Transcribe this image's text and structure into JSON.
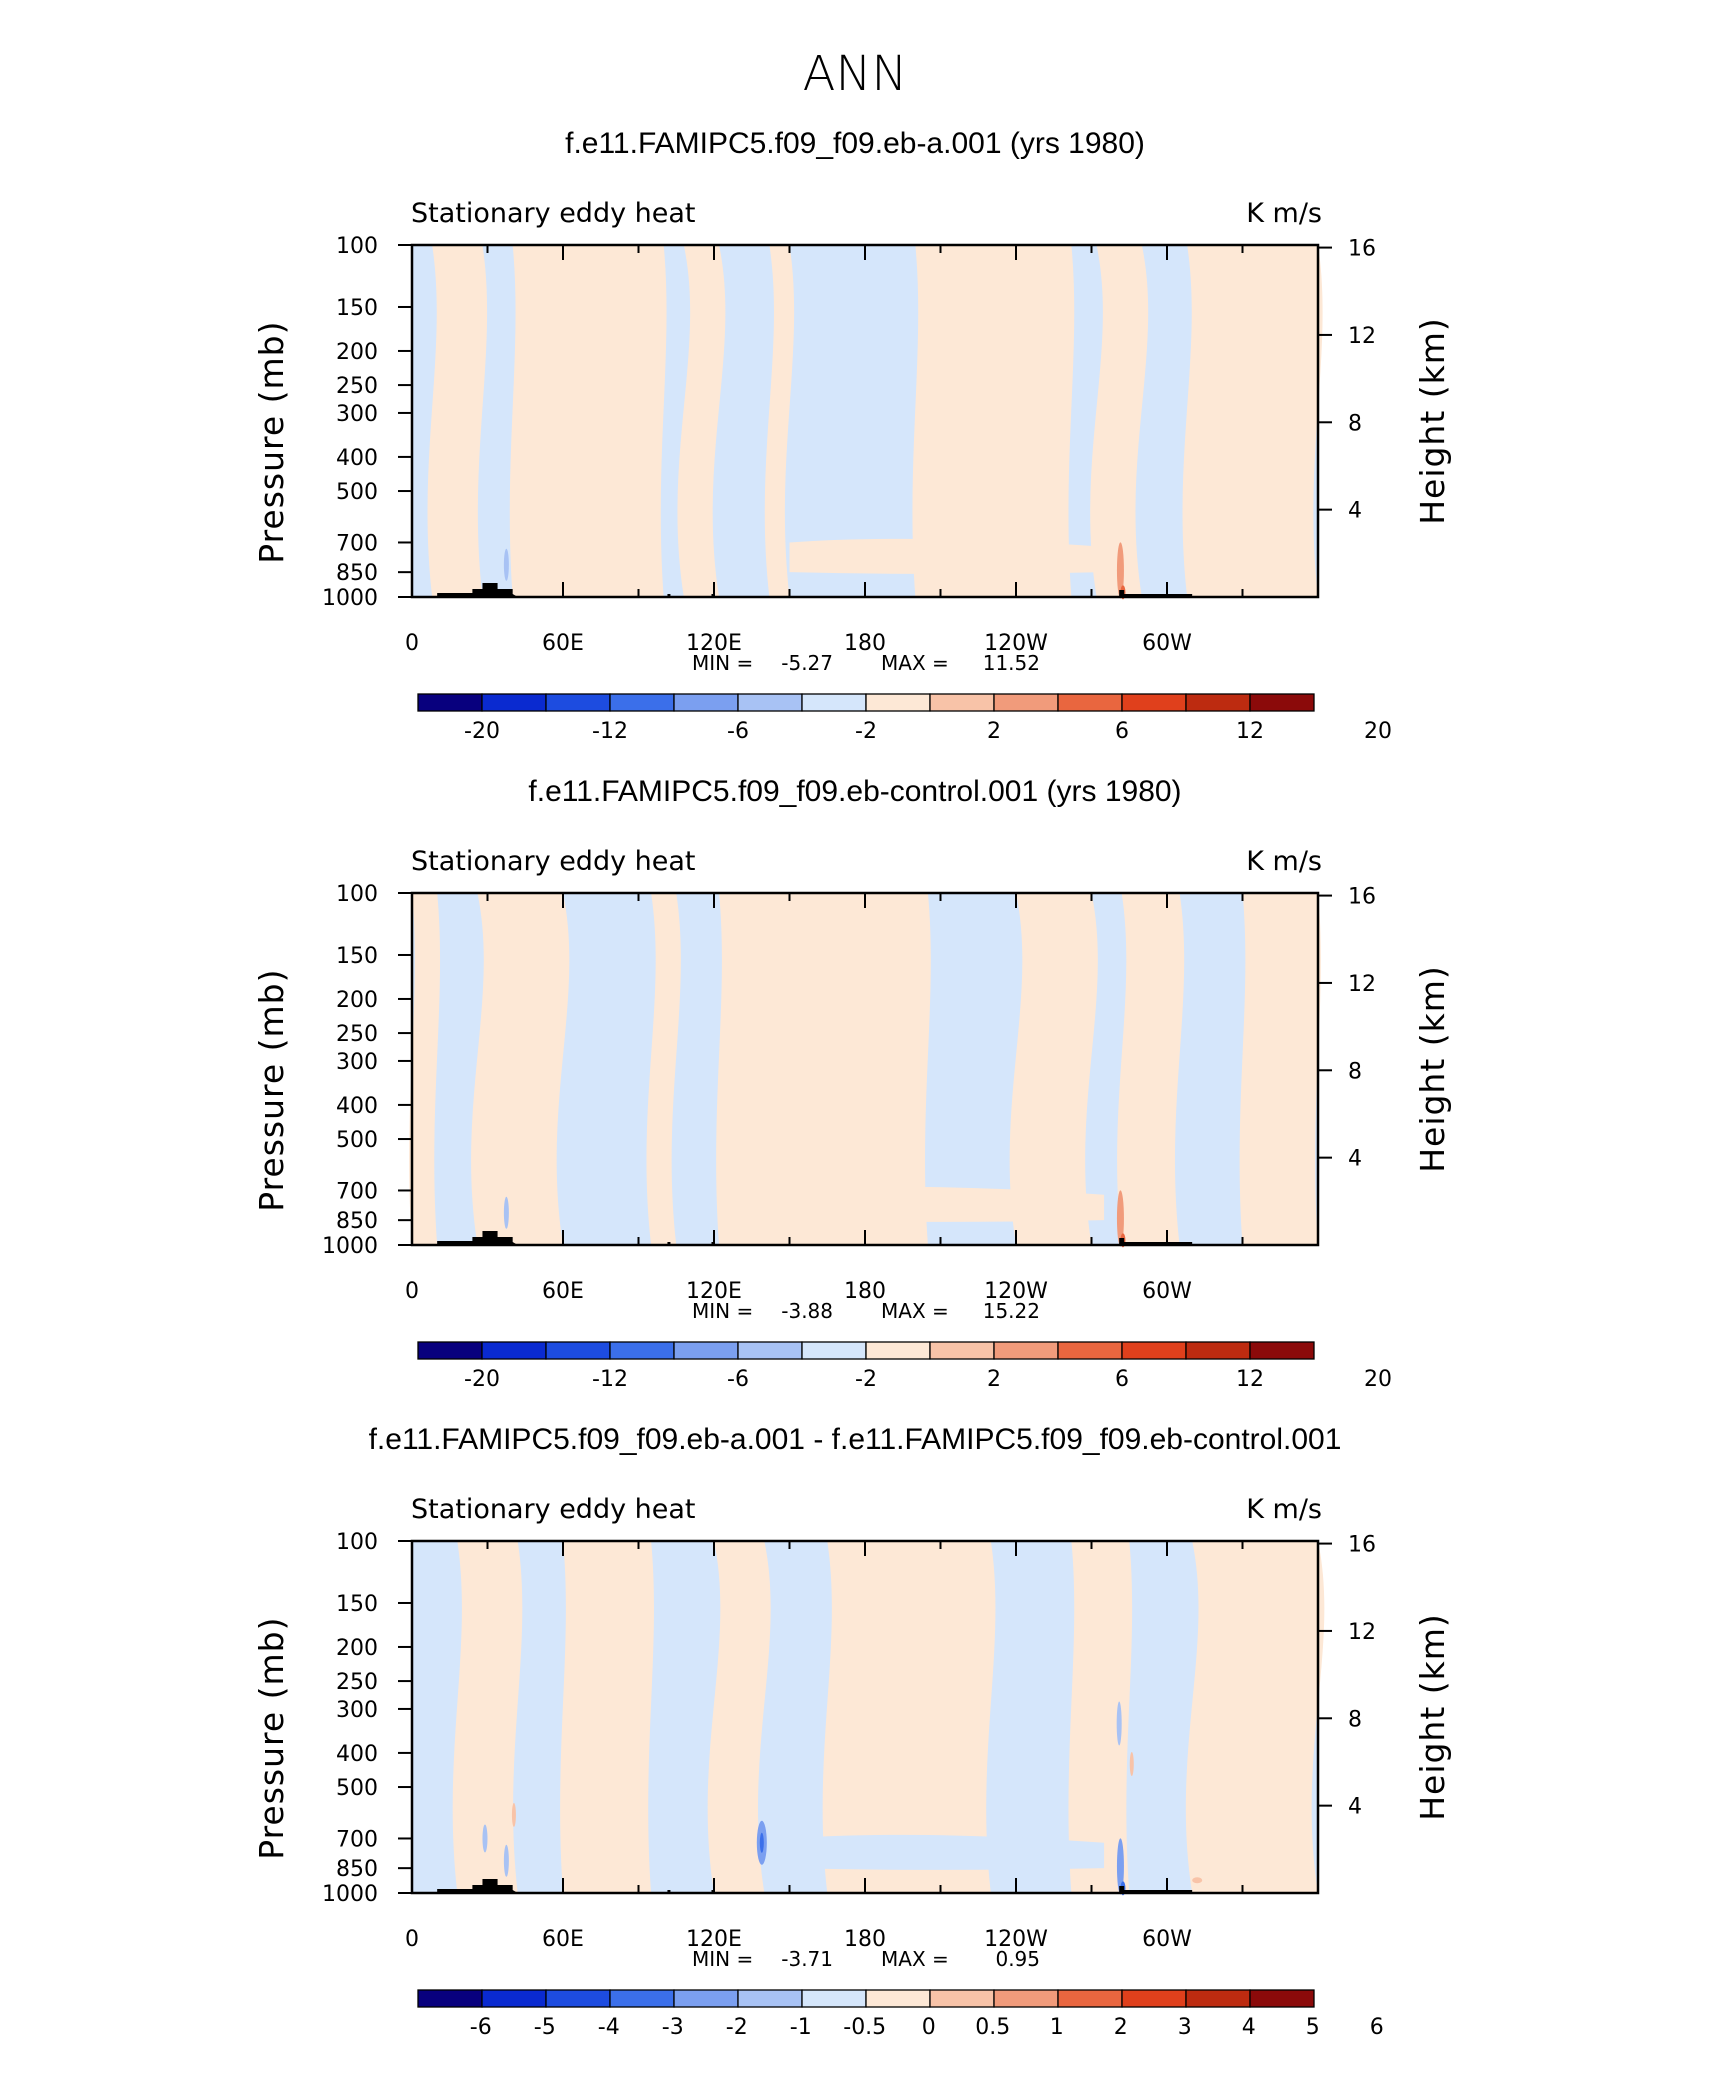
{
  "page_title": "ANN",
  "chart_data": [
    {
      "type": "heatmap",
      "title": "f.e11.FAMIPC5.f09_f09.eb-a.001 (yrs 1980)",
      "left_label": "Stationary eddy heat",
      "right_label": "K m/s",
      "ylabel": "Pressure (mb)",
      "ylabel_right": "Height (km)",
      "x_ticks": [
        "0",
        "60E",
        "120E",
        "180",
        "120W",
        "60W"
      ],
      "x_tick_lon": [
        0,
        60,
        120,
        180,
        240,
        300
      ],
      "xlim": [
        0,
        360
      ],
      "y_ticks": [
        "100",
        "150",
        "200",
        "250",
        "300",
        "400",
        "500",
        "700",
        "850",
        "1000"
      ],
      "y_tick_mb": [
        100,
        150,
        200,
        250,
        300,
        400,
        500,
        700,
        850,
        1000
      ],
      "ylim": [
        1000,
        100
      ],
      "height_ticks": [
        "16",
        "12",
        "8",
        "4"
      ],
      "height_km": [
        16,
        12,
        8,
        4
      ],
      "min_label": "MIN =",
      "min": "-5.27",
      "max_label": "MAX =",
      "max": "11.52",
      "colorbar_labels": [
        "-20",
        "-12",
        "-6",
        "-2",
        "2",
        "6",
        "12",
        "20"
      ],
      "positive_regions_lon_ranges": [
        [
          15,
          130
        ],
        [
          195,
          265
        ],
        [
          290,
          345
        ]
      ],
      "negative_regions_lon_ranges": [
        [
          30,
          40
        ],
        [
          100,
          115
        ],
        [
          145,
          195
        ],
        [
          275,
          290
        ]
      ]
    },
    {
      "type": "heatmap",
      "title": "f.e11.FAMIPC5.f09_f09.eb-control.001 (yrs 1980)",
      "left_label": "Stationary eddy heat",
      "right_label": "K m/s",
      "ylabel": "Pressure (mb)",
      "ylabel_right": "Height (km)",
      "x_ticks": [
        "0",
        "60E",
        "120E",
        "180",
        "120W",
        "60W"
      ],
      "x_tick_lon": [
        0,
        60,
        120,
        180,
        240,
        300
      ],
      "xlim": [
        0,
        360
      ],
      "y_ticks": [
        "100",
        "150",
        "200",
        "250",
        "300",
        "400",
        "500",
        "700",
        "850",
        "1000"
      ],
      "y_tick_mb": [
        100,
        150,
        200,
        250,
        300,
        400,
        500,
        700,
        850,
        1000
      ],
      "ylim": [
        1000,
        100
      ],
      "height_ticks": [
        "16",
        "12",
        "8",
        "4"
      ],
      "height_km": [
        16,
        12,
        8,
        4
      ],
      "min_label": "MIN =",
      "min": "-3.88",
      "max_label": "MAX =",
      "max": "15.22",
      "colorbar_labels": [
        "-20",
        "-12",
        "-6",
        "-2",
        "2",
        "6",
        "12",
        "20"
      ]
    },
    {
      "type": "heatmap",
      "title": "f.e11.FAMIPC5.f09_f09.eb-a.001 - f.e11.FAMIPC5.f09_f09.eb-control.001",
      "left_label": "Stationary eddy heat",
      "right_label": "K m/s",
      "ylabel": "Pressure (mb)",
      "ylabel_right": "Height (km)",
      "x_ticks": [
        "0",
        "60E",
        "120E",
        "180",
        "120W",
        "60W"
      ],
      "x_tick_lon": [
        0,
        60,
        120,
        180,
        240,
        300
      ],
      "xlim": [
        0,
        360
      ],
      "y_ticks": [
        "100",
        "150",
        "200",
        "250",
        "300",
        "400",
        "500",
        "700",
        "850",
        "1000"
      ],
      "y_tick_mb": [
        100,
        150,
        200,
        250,
        300,
        400,
        500,
        700,
        850,
        1000
      ],
      "ylim": [
        1000,
        100
      ],
      "height_ticks": [
        "16",
        "12",
        "8",
        "4"
      ],
      "height_km": [
        16,
        12,
        8,
        4
      ],
      "min_label": "MIN =",
      "min": "-3.71",
      "max_label": "MAX =",
      "max": "0.95",
      "colorbar_labels": [
        "-6",
        "-5",
        "-4",
        "-3",
        "-2",
        "-1",
        "-0.5",
        "0",
        "0.5",
        "1",
        "2",
        "3",
        "4",
        "5",
        "6"
      ]
    }
  ],
  "colors": {
    "colorbar": [
      "#08007e",
      "#0a2ad0",
      "#1d4ce0",
      "#3b6fea",
      "#7b9ff0",
      "#a8c2f4",
      "#d5e6fb",
      "#fde8d6",
      "#f8c3a8",
      "#f19b7b",
      "#e9663f",
      "#e0401c",
      "#bd2b10",
      "#8b0a0a"
    ],
    "pos_fill": "#fde8d6",
    "neg_fill": "#d5e6fb",
    "topography": "#000000"
  }
}
